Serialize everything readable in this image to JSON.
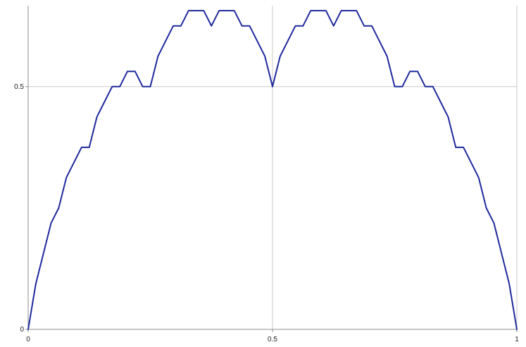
{
  "chart_data": {
    "type": "line",
    "title": "",
    "xlabel": "",
    "ylabel": "",
    "xlim": [
      0,
      1
    ],
    "ylim": [
      0,
      0.6667
    ],
    "grid": true,
    "x_ticks": [
      {
        "value": 0,
        "label": "0"
      },
      {
        "value": 0.5,
        "label": "0.5"
      },
      {
        "value": 1,
        "label": "1"
      }
    ],
    "y_ticks": [
      {
        "value": 0,
        "label": "0"
      },
      {
        "value": 0.5,
        "label": "0.5"
      }
    ],
    "series": [
      {
        "color": "#1f2a9c",
        "x": [
          0,
          0.01563,
          0.03125,
          0.04688,
          0.0625,
          0.07813,
          0.09375,
          0.10938,
          0.125,
          0.14063,
          0.15625,
          0.17188,
          0.1875,
          0.20313,
          0.21875,
          0.23438,
          0.25,
          0.26563,
          0.28125,
          0.29688,
          0.3125,
          0.32813,
          0.34375,
          0.35938,
          0.375,
          0.39063,
          0.40625,
          0.42188,
          0.4375,
          0.45313,
          0.46875,
          0.48438,
          0.5,
          0.51563,
          0.53125,
          0.54688,
          0.5625,
          0.57813,
          0.59375,
          0.60938,
          0.625,
          0.64063,
          0.65625,
          0.67188,
          0.6875,
          0.70313,
          0.71875,
          0.73438,
          0.75,
          0.76563,
          0.78125,
          0.79688,
          0.8125,
          0.82813,
          0.84375,
          0.85938,
          0.875,
          0.89063,
          0.90625,
          0.92188,
          0.9375,
          0.95313,
          0.96875,
          0.98438,
          1
        ],
        "y": [
          0,
          0.0938,
          0.1563,
          0.2188,
          0.25,
          0.3125,
          0.3438,
          0.375,
          0.375,
          0.4375,
          0.4688,
          0.5,
          0.5,
          0.5313,
          0.5313,
          0.5,
          0.5,
          0.5625,
          0.5938,
          0.625,
          0.625,
          0.6563,
          0.6563,
          0.6563,
          0.625,
          0.6563,
          0.6563,
          0.6563,
          0.625,
          0.625,
          0.5938,
          0.5625,
          0.5,
          0.5625,
          0.5938,
          0.625,
          0.625,
          0.6563,
          0.6563,
          0.6563,
          0.625,
          0.6563,
          0.6563,
          0.6563,
          0.625,
          0.625,
          0.5938,
          0.5625,
          0.5,
          0.5,
          0.5313,
          0.5313,
          0.5,
          0.5,
          0.4688,
          0.4375,
          0.375,
          0.375,
          0.3438,
          0.3125,
          0.25,
          0.2188,
          0.1563,
          0.0938,
          0
        ]
      }
    ]
  }
}
